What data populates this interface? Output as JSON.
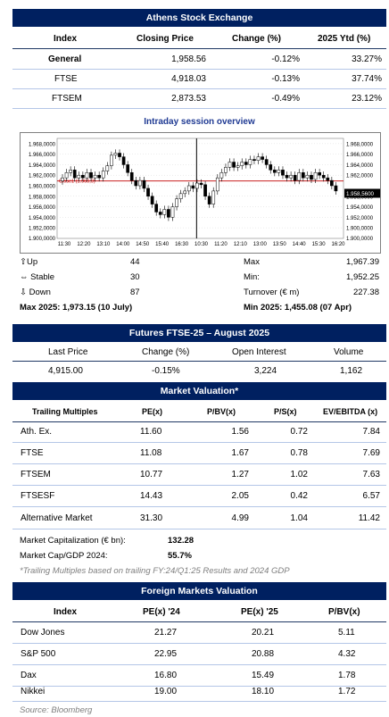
{
  "ase": {
    "title": "Athens Stock Exchange",
    "headers": [
      "Index",
      "Closing Price",
      "Change (%)",
      "2025 Ytd (%)"
    ],
    "rows": [
      {
        "index": "General",
        "closing": "1,958.56",
        "change": "-0.12%",
        "ytd": "33.27%"
      },
      {
        "index": "FTSE",
        "closing": "4,918.03",
        "change": "-0.13%",
        "ytd": "37.74%"
      },
      {
        "index": "FTSEM",
        "closing": "2,873.53",
        "change": "-0.49%",
        "ytd": "23.12%"
      }
    ]
  },
  "intraday": {
    "title": "Intraday session overview",
    "up_label": "Up",
    "up_value": "44",
    "stable_label": "Stable",
    "stable_value": "30",
    "down_label": "Down",
    "down_value": "87",
    "max_label": "Max",
    "max_value": "1,967.39",
    "min_label": "Min:",
    "min_value": "1,952.25",
    "turnover_label": "Turnover (€ m)",
    "turnover_value": "227.38",
    "max2025": "Max 2025: 1,973.15 (10 July)",
    "min2025": "Min 2025:  1,455.08 (07 Apr)"
  },
  "chart_data": {
    "type": "candlestick",
    "y_ticks": [
      "1.968,0000",
      "1.966,0000",
      "1.964,0000",
      "1.962,0000",
      "1.960,0000",
      "1.958,0000",
      "1.956,0000",
      "1.954,0000",
      "1.952,0000",
      "1.900,0000"
    ],
    "y_ticks_right": [
      "1.968,0000",
      "1.966,0000",
      "1.964,0000",
      "1.962,0000",
      "1.958,5600",
      "1.956,0000",
      "1.954,0000",
      "1.952,0000",
      "1.900,0000"
    ],
    "x_ticks": [
      "11:30",
      "12:20",
      "13:10",
      "14:00",
      "14:50",
      "15:40",
      "16:30",
      "10:30",
      "11:20",
      "12:10",
      "13:00",
      "13:50",
      "14:40",
      "15:30",
      "16:20"
    ],
    "close_label": "Close1 (1.960,9)",
    "last_value_label": "1.958,5600",
    "prev_close": 1960.9,
    "last": 1958.56,
    "ylim": [
      1951,
      1969
    ],
    "closes": [
      1961.5,
      1962.5,
      1963.0,
      1961.5,
      1962.0,
      1961.5,
      1962.5,
      1961.5,
      1962.0,
      1961.5,
      1962.8,
      1963.8,
      1965.8,
      1966.2,
      1965.5,
      1964.0,
      1962.5,
      1961.0,
      1960.0,
      1961.0,
      1959.5,
      1958.0,
      1956.5,
      1955.0,
      1954.5,
      1955.5,
      1954.0,
      1956.0,
      1957.5,
      1958.5,
      1959.0,
      1960.0,
      1959.5,
      1960.5,
      1960.2,
      1958.0,
      1956.5,
      1959.0,
      1961.5,
      1962.5,
      1963.5,
      1964.5,
      1963.5,
      1963.8,
      1964.5,
      1964.0,
      1965.0,
      1964.8,
      1965.5,
      1965.0,
      1964.0,
      1963.0,
      1962.5,
      1963.0,
      1962.0,
      1961.5,
      1962.0,
      1961.0,
      1962.5,
      1961.5,
      1962.0,
      1961.2,
      1962.5,
      1962.0,
      1961.5,
      1961.0,
      1960.0,
      1959.0
    ]
  },
  "futures": {
    "title": "Futures FTSE-25 – August 2025",
    "headers": [
      "Last Price",
      "Change (%)",
      "Open Interest",
      "Volume"
    ],
    "values": [
      "4,915.00",
      "-0.15%",
      "3,224",
      "1,162"
    ]
  },
  "valuation": {
    "title": "Market Valuation*",
    "headers": [
      "Trailing Multiples",
      "PE(x)",
      "P/BV(x)",
      "P/S(x)",
      "EV/EBITDA (x)"
    ],
    "rows": [
      {
        "name": "Ath. Ex.",
        "pe": "11.60",
        "pbv": "1.56",
        "ps": "0.72",
        "ev": "7.84"
      },
      {
        "name": "FTSE",
        "pe": "11.08",
        "pbv": "1.67",
        "ps": "0.78",
        "ev": "7.69"
      },
      {
        "name": "FTSEM",
        "pe": "10.77",
        "pbv": "1.27",
        "ps": "1.02",
        "ev": "7.63"
      },
      {
        "name": "FTSESF",
        "pe": "14.43",
        "pbv": "2.05",
        "ps": "0.42",
        "ev": "6.57"
      },
      {
        "name": "Alternative Market",
        "pe": "31.30",
        "pbv": "4.99",
        "ps": "1.04",
        "ev": "11.42"
      }
    ],
    "mcap_label": "Market Capitalization (€ bn):",
    "mcap_value": "132.28",
    "mcap_gdp_label": "Market Cap/GDP 2024:",
    "mcap_gdp_value": "55.7%",
    "footnote": "*Trailing Multiples based on trailing FY:24/Q1:25 Results and 2024 GDP"
  },
  "foreign": {
    "title": "Foreign Markets Valuation",
    "headers": [
      "Index",
      "PE(x) '24",
      "PE(x) '25",
      "P/BV(x)"
    ],
    "rows": [
      {
        "name": "Dow Jones",
        "pe24": "21.27",
        "pe25": "20.21",
        "pbv": "5.11"
      },
      {
        "name": "S&P 500",
        "pe24": "22.95",
        "pe25": "20.88",
        "pbv": "4.32"
      },
      {
        "name": "Dax",
        "pe24": "16.80",
        "pe25": "15.49",
        "pbv": "1.78"
      },
      {
        "name": "Nikkei",
        "pe24": "19.00",
        "pe25": "18.10",
        "pbv": "1.72"
      }
    ],
    "source": "Source: Bloomberg"
  },
  "colors": {
    "header_bg": "#002060",
    "title_blue": "#1f3a93",
    "close_line": "#c00000",
    "note_grey": "#7f7f7f"
  }
}
